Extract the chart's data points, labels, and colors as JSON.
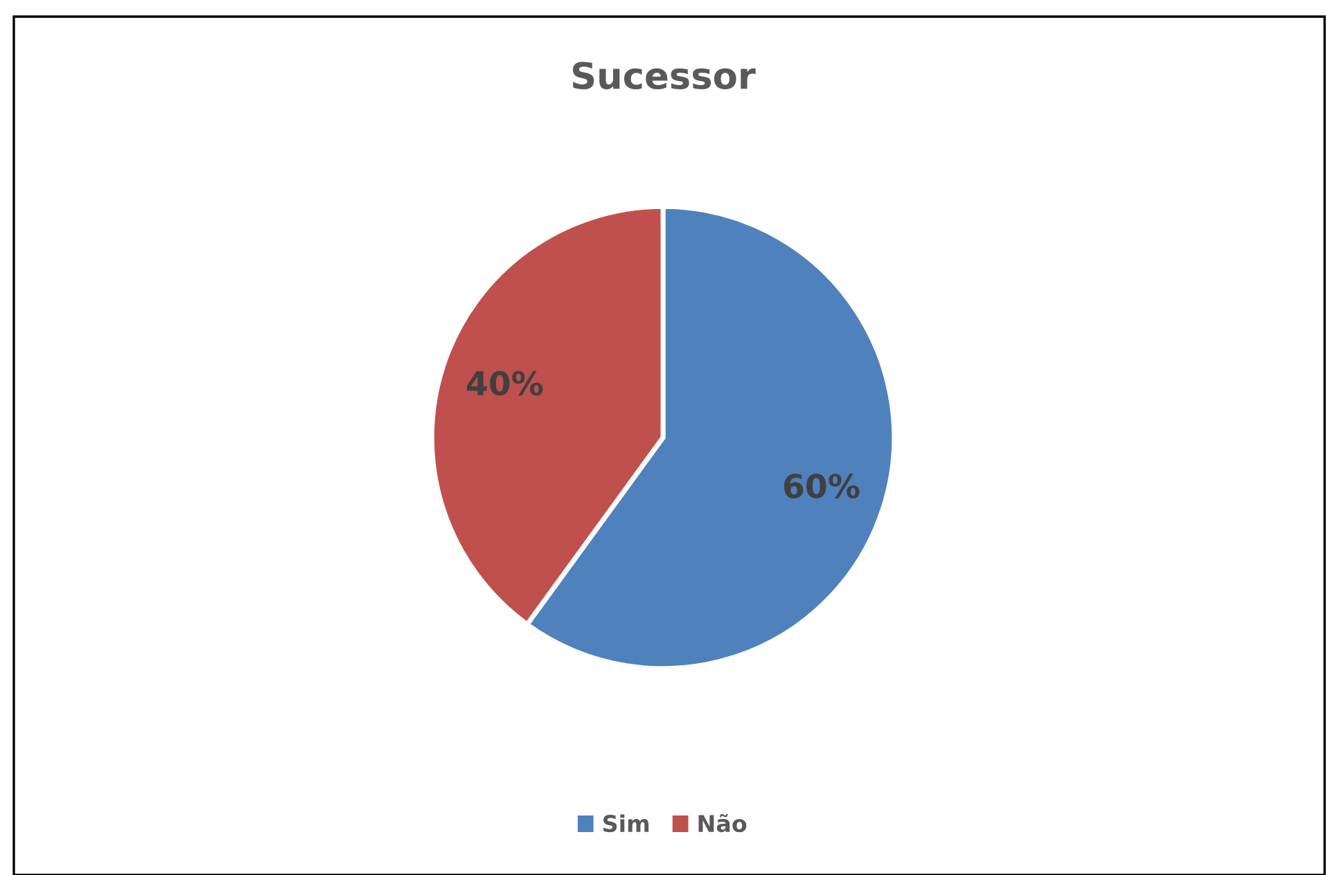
{
  "chart_data": {
    "type": "pie",
    "title": "Sucessor",
    "categories": [
      "Sim",
      "Não"
    ],
    "values": [
      60,
      40
    ],
    "colors": [
      "#4f81bd",
      "#c0504d"
    ],
    "value_labels": [
      "60%",
      "40%"
    ],
    "legend": "bottom"
  }
}
